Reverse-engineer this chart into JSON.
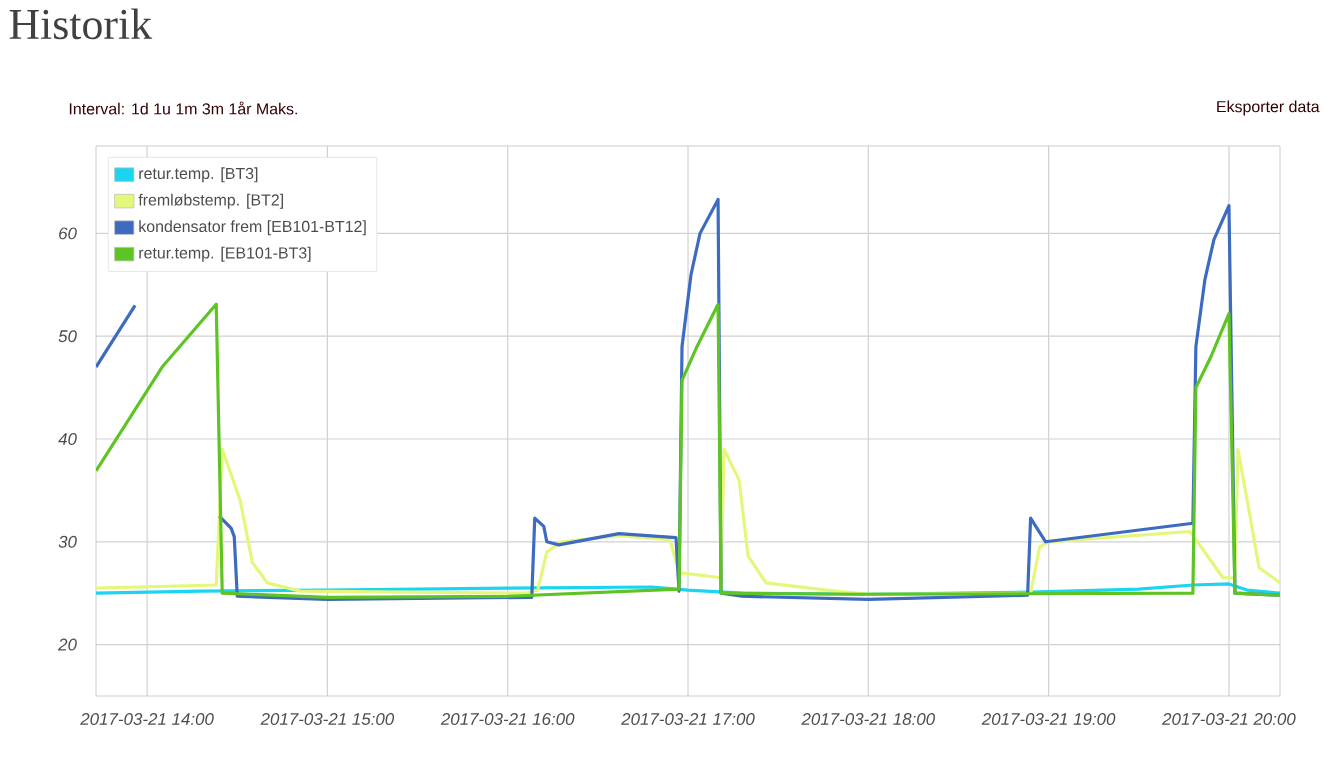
{
  "chart_data": {
    "type": "line",
    "title": "Historik",
    "annotations": [
      "Interval: 1d 1u 1m 3m 1år Maks.",
      "Eksporter data"
    ],
    "xlim": [
      "2017-03-21T13:43",
      "2017-03-21T20:17"
    ],
    "ylim": [
      15,
      68.5
    ],
    "xticks": [
      {
        "value": "2017-03-21T14:00",
        "label": "2017-03-21 14:00"
      },
      {
        "value": "2017-03-21T15:00",
        "label": "2017-03-21 15:00"
      },
      {
        "value": "2017-03-21T16:00",
        "label": "2017-03-21 16:00"
      },
      {
        "value": "2017-03-21T17:00",
        "label": "2017-03-21 17:00"
      },
      {
        "value": "2017-03-21T18:00",
        "label": "2017-03-21 18:00"
      },
      {
        "value": "2017-03-21T19:00",
        "label": "2017-03-21 19:00"
      },
      {
        "value": "2017-03-21T20:00",
        "label": "2017-03-21 20:00"
      }
    ],
    "yticks": [
      20,
      30,
      40,
      50,
      60
    ],
    "grid": true,
    "legend": "top left",
    "marker": "none",
    "line_style": "solid",
    "series": [
      {
        "name": "retur.temp. [BT3]",
        "color": "#1ad4f0",
        "x": [
          "2017-03-21T13:43",
          "2017-03-21T14:18",
          "2017-03-21T15:00",
          "2017-03-21T16:00",
          "2017-03-21T16:48",
          "2017-03-21T17:00",
          "2017-03-21T17:18",
          "2017-03-21T18:00",
          "2017-03-21T18:54",
          "2017-03-21T19:30",
          "2017-03-21T19:48",
          "2017-03-21T20:00",
          "2017-03-21T20:06",
          "2017-03-21T20:17"
        ],
        "values": [
          25,
          25.2,
          25.3,
          25.5,
          25.6,
          25.3,
          25,
          24.9,
          25.1,
          25.4,
          25.8,
          25.9,
          25.3,
          25
        ]
      },
      {
        "name": "fremløbstemp. [BT2]",
        "color": "#e4f77a",
        "x": [
          "2017-03-21T13:43",
          "2017-03-21T14:23",
          "2017-03-21T14:25",
          "2017-03-21T14:31",
          "2017-03-21T14:35",
          "2017-03-21T14:40",
          "2017-03-21T14:51",
          "2017-03-21T16:06",
          "2017-03-21T16:10",
          "2017-03-21T16:13",
          "2017-03-21T16:18",
          "2017-03-21T16:37",
          "2017-03-21T16:54",
          "2017-03-21T16:57",
          "2017-03-21T17:11",
          "2017-03-21T17:12",
          "2017-03-21T17:17",
          "2017-03-21T17:20",
          "2017-03-21T17:26",
          "2017-03-21T17:46",
          "2017-03-21T18:00",
          "2017-03-21T18:54",
          "2017-03-21T18:57",
          "2017-03-21T19:00",
          "2017-03-21T19:47",
          "2017-03-21T19:51",
          "2017-03-21T19:58",
          "2017-03-21T20:02",
          "2017-03-21T20:03",
          "2017-03-21T20:07",
          "2017-03-21T20:10",
          "2017-03-21T20:17"
        ],
        "values": [
          25.5,
          25.8,
          39,
          34,
          28,
          26,
          25.2,
          25,
          25.3,
          29,
          30,
          30.6,
          30.2,
          27,
          26.5,
          39,
          36,
          28.6,
          26,
          25.3,
          24.9,
          25,
          29.5,
          30,
          31,
          29.4,
          26.5,
          26.5,
          39,
          32.5,
          27.5,
          26
        ]
      },
      {
        "name": "kondensator frem [EB101-BT12]",
        "color": "#3d6bbf",
        "x": [
          "2017-03-21T13:43",
          "2017-03-21T13:56",
          "2017-03-21T14:07",
          "2017-03-21T14:13",
          "2017-03-21T14:23",
          "2017-03-21T14:24",
          "2017-03-21T14:28",
          "2017-03-21T14:29",
          "2017-03-21T14:30",
          "2017-03-21T15:00",
          "2017-03-21T16:08",
          "2017-03-21T16:09",
          "2017-03-21T16:12",
          "2017-03-21T16:13",
          "2017-03-21T16:17",
          "2017-03-21T16:37",
          "2017-03-21T16:56",
          "2017-03-21T16:57",
          "2017-03-21T16:58",
          "2017-03-21T17:01",
          "2017-03-21T17:04",
          "2017-03-21T17:10",
          "2017-03-21T17:11",
          "2017-03-21T17:18",
          "2017-03-21T18:00",
          "2017-03-21T18:53",
          "2017-03-21T18:54",
          "2017-03-21T18:59",
          "2017-03-21T19:48",
          "2017-03-21T19:49",
          "2017-03-21T19:52",
          "2017-03-21T19:55",
          "2017-03-21T20:00",
          "2017-03-21T20:02",
          "2017-03-21T20:17"
        ],
        "values": [
          47,
          53,
          null,
          null,
          null,
          32.5,
          31.3,
          30.5,
          24.7,
          24.4,
          24.6,
          32.3,
          31.5,
          30,
          29.7,
          30.8,
          30.4,
          25.2,
          49,
          56,
          60,
          63.3,
          25,
          24.7,
          24.4,
          24.8,
          32.3,
          30,
          31.8,
          49,
          55.5,
          59.4,
          62.7,
          25,
          24.8
        ]
      },
      {
        "name": "retur.temp. [EB101-BT3]",
        "color": "#5ec424",
        "x": [
          "2017-03-21T13:43",
          "2017-03-21T14:05",
          "2017-03-21T14:23",
          "2017-03-21T14:25",
          "2017-03-21T15:00",
          "2017-03-21T16:00",
          "2017-03-21T16:57",
          "2017-03-21T16:58",
          "2017-03-21T17:03",
          "2017-03-21T17:10",
          "2017-03-21T17:11",
          "2017-03-21T18:00",
          "2017-03-21T19:48",
          "2017-03-21T19:49",
          "2017-03-21T19:54",
          "2017-03-21T20:00",
          "2017-03-21T20:02",
          "2017-03-21T20:17"
        ],
        "values": [
          36.9,
          47,
          53.1,
          25,
          24.6,
          24.7,
          25.4,
          45.7,
          49,
          53.1,
          25,
          24.9,
          25,
          45,
          48,
          52.2,
          25,
          24.8
        ]
      }
    ]
  }
}
